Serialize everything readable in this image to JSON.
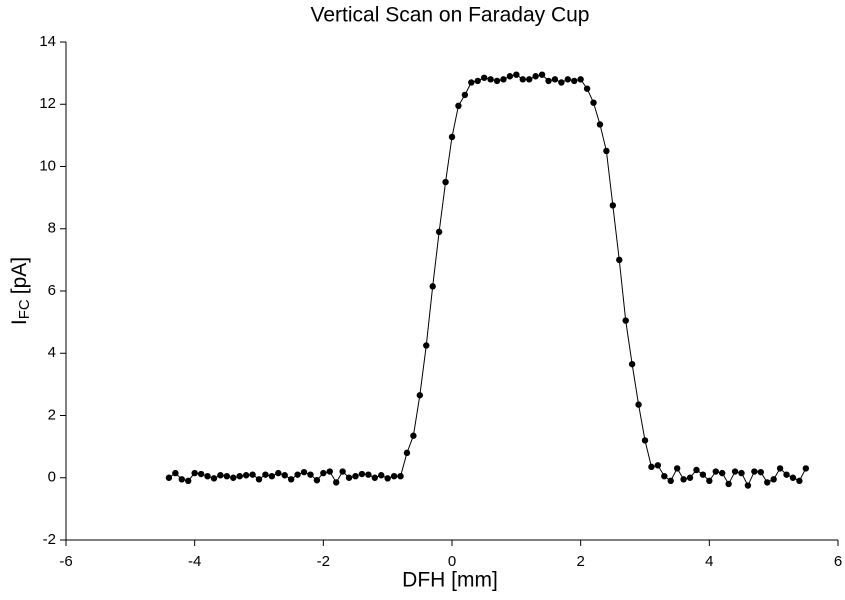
{
  "chart_data": {
    "type": "line",
    "title": "Vertical Scan on Faraday Cup",
    "x_label": "DFH [mm]",
    "y_label": "I",
    "y_label_subscript": "FC",
    "y_label_suffix": "[pA]",
    "x": [
      -4.4,
      -4.3,
      -4.2,
      -4.1,
      -4.0,
      -3.9,
      -3.8,
      -3.7,
      -3.6,
      -3.5,
      -3.4,
      -3.3,
      -3.2,
      -3.1,
      -3.0,
      -2.9,
      -2.8,
      -2.7,
      -2.6,
      -2.5,
      -2.4,
      -2.3,
      -2.2,
      -2.1,
      -2.0,
      -1.9,
      -1.8,
      -1.7,
      -1.6,
      -1.5,
      -1.4,
      -1.3,
      -1.2,
      -1.1,
      -1.0,
      -0.9,
      -0.8,
      -0.7,
      -0.6,
      -0.5,
      -0.4,
      -0.3,
      -0.2,
      -0.1,
      0.0,
      0.1,
      0.2,
      0.3,
      0.4,
      0.5,
      0.6,
      0.7,
      0.8,
      0.9,
      1.0,
      1.1,
      1.2,
      1.3,
      1.4,
      1.5,
      1.6,
      1.7,
      1.8,
      1.9,
      2.0,
      2.1,
      2.2,
      2.3,
      2.4,
      2.5,
      2.6,
      2.7,
      2.8,
      2.9,
      3.0,
      3.1,
      3.2,
      3.3,
      3.4,
      3.5,
      3.6,
      3.7,
      3.8,
      3.9,
      4.0,
      4.1,
      4.2,
      4.3,
      4.4,
      4.5,
      4.6,
      4.7,
      4.8,
      4.9,
      5.0,
      5.1,
      5.2,
      5.3,
      5.4,
      5.5
    ],
    "series": [
      {
        "color": "#000000",
        "values": [
          0.0,
          0.15,
          -0.05,
          -0.1,
          0.15,
          0.12,
          0.05,
          -0.02,
          0.08,
          0.05,
          0.0,
          0.05,
          0.08,
          0.1,
          -0.05,
          0.1,
          0.05,
          0.15,
          0.08,
          -0.05,
          0.1,
          0.18,
          0.1,
          -0.08,
          0.15,
          0.2,
          -0.15,
          0.2,
          0.0,
          0.05,
          0.12,
          0.1,
          0.0,
          0.08,
          -0.02,
          0.05,
          0.05,
          0.8,
          1.35,
          2.65,
          4.25,
          6.15,
          7.9,
          9.5,
          10.95,
          11.95,
          12.3,
          12.7,
          12.75,
          12.85,
          12.8,
          12.75,
          12.8,
          12.9,
          12.95,
          12.8,
          12.8,
          12.9,
          12.95,
          12.75,
          12.8,
          12.7,
          12.8,
          12.75,
          12.8,
          12.5,
          12.05,
          11.35,
          10.5,
          8.75,
          7.0,
          5.05,
          3.65,
          2.35,
          1.2,
          0.35,
          0.4,
          0.05,
          -0.1,
          0.3,
          -0.05,
          0.0,
          0.25,
          0.1,
          -0.1,
          0.2,
          0.15,
          -0.2,
          0.2,
          0.15,
          -0.25,
          0.2,
          0.18,
          -0.15,
          -0.05,
          0.3,
          0.1,
          0.0,
          -0.1,
          0.3
        ]
      }
    ],
    "xlim": [
      -6,
      6
    ],
    "xticks": [
      -6,
      -4,
      -2,
      0,
      2,
      4,
      6
    ],
    "ylim": [
      -2,
      14
    ],
    "yticks": [
      -2,
      0,
      2,
      4,
      6,
      8,
      10,
      12,
      14
    ]
  }
}
